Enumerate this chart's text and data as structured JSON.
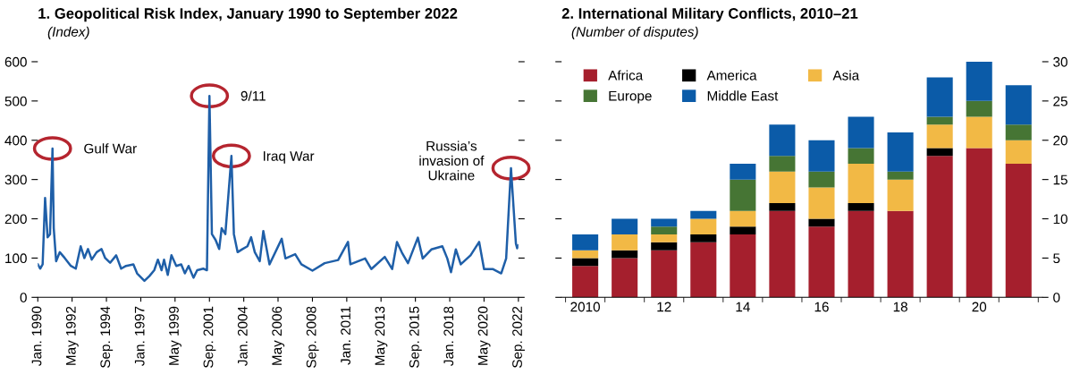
{
  "chart_data": [
    {
      "type": "line",
      "title": "1. Geopolitical Risk Index, January 1990 to September 2022",
      "subtitle": "(Index)",
      "x": [
        "1990-01",
        "1990-03",
        "1990-05",
        "1990-07",
        "1990-09",
        "1990-11",
        "1991-01",
        "1991-02",
        "1991-04",
        "1991-07",
        "1991-11",
        "1992-04",
        "1992-08",
        "1992-12",
        "1993-03",
        "1993-06",
        "1993-09",
        "1994-01",
        "1994-05",
        "1994-08",
        "1994-12",
        "1995-05",
        "1995-09",
        "1996-01",
        "1996-07",
        "1996-10",
        "1997-04",
        "1997-08",
        "1997-12",
        "1998-03",
        "1998-06",
        "1998-08",
        "1998-11",
        "1999-02",
        "1999-06",
        "1999-10",
        "2000-01",
        "2000-04",
        "2000-08",
        "2000-11",
        "2001-04",
        "2001-07",
        "2001-09",
        "2001-11",
        "2002-02",
        "2002-05",
        "2002-07",
        "2002-10",
        "2003-03",
        "2003-05",
        "2003-08",
        "2003-12",
        "2004-04",
        "2004-07",
        "2004-10",
        "2005-02",
        "2005-05",
        "2005-10",
        "2006-08",
        "2006-11",
        "2007-07",
        "2007-12",
        "2008-09",
        "2009-07",
        "2010-06",
        "2011-02",
        "2011-04",
        "2012-04",
        "2012-09",
        "2013-08",
        "2014-02",
        "2014-06",
        "2014-10",
        "2015-03",
        "2015-11",
        "2016-03",
        "2016-10",
        "2017-07",
        "2017-11",
        "2018-02",
        "2018-06",
        "2018-10",
        "2019-06",
        "2020-01",
        "2020-05",
        "2020-12",
        "2021-07",
        "2021-11",
        "2022-03",
        "2022-07",
        "2022-08",
        "2022-09"
      ],
      "series": [
        {
          "color": "#1f5fa8",
          "values": [
            84,
            73,
            84,
            253,
            153,
            161,
            379,
            176,
            92,
            115,
            100,
            80,
            73,
            130,
            100,
            123,
            96,
            115,
            123,
            100,
            88,
            107,
            73,
            80,
            84,
            61,
            42,
            54,
            69,
            96,
            69,
            96,
            57,
            107,
            80,
            84,
            61,
            80,
            50,
            69,
            73,
            69,
            513,
            161,
            146,
            123,
            176,
            161,
            360,
            161,
            115,
            123,
            130,
            153,
            115,
            92,
            169,
            84,
            149,
            99,
            110,
            84,
            68,
            87,
            95,
            141,
            84,
            99,
            72,
            103,
            72,
            141,
            114,
            87,
            152,
            99,
            122,
            130,
            99,
            64,
            122,
            84,
            107,
            141,
            72,
            72,
            61,
            99,
            329,
            137,
            125,
            132
          ]
        }
      ],
      "xlim": [
        "1990-01",
        "2022-09"
      ],
      "xticks": [
        {
          "value": "1990-01",
          "label": "Jan. 1990"
        },
        {
          "value": "1992-05",
          "label": "May 1992"
        },
        {
          "value": "1994-09",
          "label": "Sep. 1994"
        },
        {
          "value": "1997-01",
          "label": "Jan. 1997"
        },
        {
          "value": "1999-05",
          "label": "May 1999"
        },
        {
          "value": "2001-09",
          "label": "Sep. 2001"
        },
        {
          "value": "2004-01",
          "label": "Jan. 2004"
        },
        {
          "value": "2006-05",
          "label": "May 2006"
        },
        {
          "value": "2008-09",
          "label": "Sep. 2008"
        },
        {
          "value": "2011-01",
          "label": "Jan. 2011"
        },
        {
          "value": "2013-05",
          "label": "May 2013"
        },
        {
          "value": "2015-09",
          "label": "Sep. 2015"
        },
        {
          "value": "2018-01",
          "label": "Jan. 2018"
        },
        {
          "value": "2020-05",
          "label": "May 2020"
        },
        {
          "value": "2022-09",
          "label": "Sep. 2022"
        }
      ],
      "ylim": [
        0,
        600
      ],
      "yticks": [
        0,
        100,
        200,
        300,
        400,
        500,
        600
      ],
      "grid": false,
      "legend": false,
      "annotations": [
        {
          "text": "Gulf War",
          "x": "1991-01",
          "y": 379
        },
        {
          "text": "9/11",
          "x": "2001-09",
          "y": 513
        },
        {
          "text": "Iraq War",
          "x": "2003-03",
          "y": 360
        },
        {
          "text": "Russia’s\ninvasion of\nUkraine",
          "x": "2022-03",
          "y": 329
        }
      ]
    },
    {
      "type": "bar",
      "stacked": true,
      "title": "2. International Military Conflicts, 2010–21",
      "subtitle": "(Number of disputes)",
      "categories": [
        "2010",
        null,
        "12",
        null,
        "14",
        null,
        "16",
        null,
        "18",
        null,
        "20",
        null
      ],
      "series": [
        {
          "name": "Africa",
          "color": "#a51f2d",
          "values": [
            4,
            5,
            6,
            7,
            8,
            11,
            9,
            11,
            11,
            18,
            19,
            17
          ]
        },
        {
          "name": "America",
          "color": "#000000",
          "values": [
            1,
            1,
            1,
            1,
            1,
            1,
            1,
            1,
            0,
            1,
            0,
            0
          ]
        },
        {
          "name": "Asia",
          "color": "#f2b945",
          "values": [
            1,
            2,
            1,
            2,
            2,
            4,
            4,
            5,
            4,
            3,
            4,
            3
          ]
        },
        {
          "name": "Europe",
          "color": "#467534",
          "values": [
            0,
            0,
            1,
            0,
            4,
            2,
            2,
            2,
            1,
            1,
            2,
            2
          ]
        },
        {
          "name": "Middle East",
          "color": "#0b5ba8",
          "values": [
            2,
            2,
            1,
            1,
            2,
            4,
            4,
            4,
            5,
            5,
            5,
            5
          ]
        }
      ],
      "ylim": [
        0,
        30
      ],
      "yticks": [
        0,
        5,
        10,
        15,
        20,
        25,
        30
      ],
      "grid": false,
      "legend": "top left"
    }
  ]
}
